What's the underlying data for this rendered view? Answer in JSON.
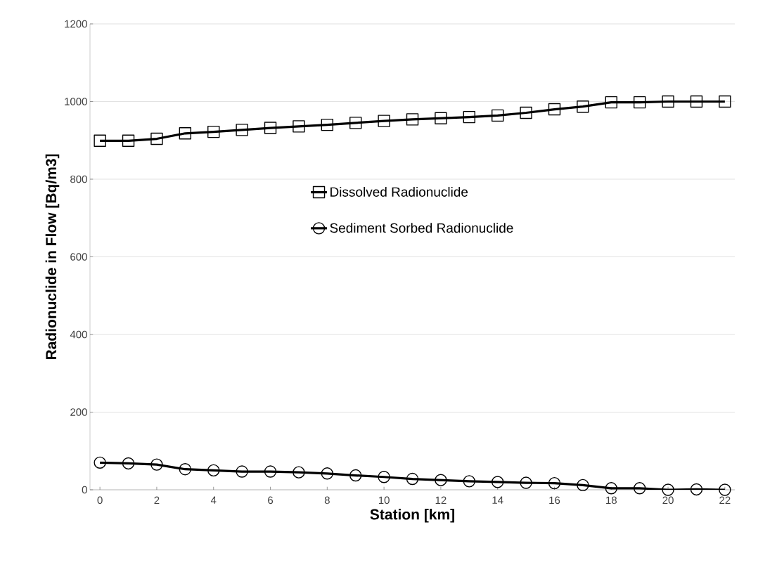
{
  "chart_data": {
    "type": "line",
    "xlabel": "Station [km]",
    "ylabel": "Radionuclide in Flow [Bq/m3]",
    "x": [
      0,
      1,
      2,
      3,
      4,
      5,
      6,
      7,
      8,
      9,
      10,
      11,
      12,
      13,
      14,
      15,
      16,
      17,
      18,
      19,
      20,
      21,
      22
    ],
    "series": [
      {
        "name": "Dissolved Radionuclide",
        "color": "#000000",
        "marker": "square",
        "values": [
          899,
          899,
          904,
          918,
          922,
          927,
          932,
          936,
          940,
          945,
          950,
          954,
          957,
          960,
          964,
          971,
          980,
          987,
          998,
          998,
          1000,
          1000,
          1000
        ]
      },
      {
        "name": "Sediment Sorbed Radionuclide",
        "color": "#000000",
        "marker": "circle",
        "values": [
          70,
          68,
          65,
          53,
          50,
          47,
          47,
          45,
          42,
          37,
          33,
          28,
          25,
          22,
          20,
          18,
          17,
          12,
          4,
          4,
          0,
          1,
          0
        ]
      }
    ],
    "xlim": [
      -0.35,
      22.35
    ],
    "xticks": [
      0,
      2,
      4,
      6,
      8,
      10,
      12,
      14,
      16,
      18,
      20,
      22
    ],
    "ylim": [
      0,
      1200
    ],
    "yticks": [
      0,
      200,
      400,
      600,
      800,
      1000,
      1200
    ],
    "grid": "y",
    "legend": "center",
    "line_style": "solid"
  }
}
